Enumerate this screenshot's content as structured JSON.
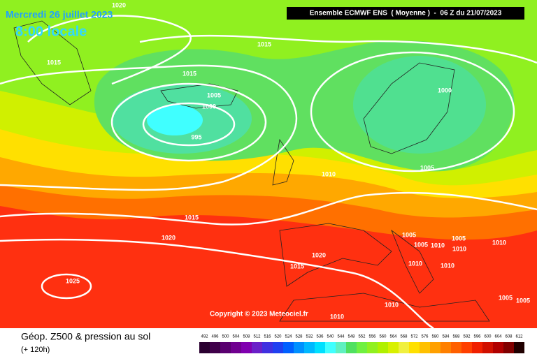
{
  "title": {
    "date": "Mercredi 26 juillet 2023",
    "time": "8:00 locale"
  },
  "header": "Ensemble ECMWF ENS  ( Moyenne )  -  06 Z du 21/07/2023",
  "isobars": [
    1020,
    1015,
    1015,
    1015,
    1005,
    1000,
    995,
    1000,
    1005,
    1010,
    1015,
    1020,
    1005,
    1005,
    1010,
    1005,
    1010,
    1010,
    1020,
    1015,
    1010,
    1010,
    1025,
    1010,
    1010,
    1005,
    1005
  ],
  "copyright": "Copyright © 2023 Meteociel.fr",
  "footer": {
    "title": "Géop. Z500 & pression au sol",
    "lead": "(+ 120h)"
  },
  "scale": {
    "values": [
      492,
      496,
      500,
      504,
      508,
      512,
      516,
      520,
      524,
      528,
      532,
      536,
      540,
      544,
      548,
      552,
      556,
      560,
      564,
      568,
      572,
      576,
      580,
      584,
      588,
      592,
      596,
      600,
      604,
      608,
      612
    ],
    "colors": [
      "#2a0030",
      "#40004a",
      "#5a0070",
      "#700090",
      "#8000b0",
      "#6a20c8",
      "#4030e0",
      "#2040f0",
      "#0060ff",
      "#0090ff",
      "#00b8ff",
      "#00e0ff",
      "#40ffff",
      "#60f0c0",
      "#50e060",
      "#70f040",
      "#90f020",
      "#b0f000",
      "#d8f000",
      "#f0f040",
      "#ffe000",
      "#ffc000",
      "#ffa000",
      "#ff8000",
      "#ff6000",
      "#ff4000",
      "#f02000",
      "#d01000",
      "#b00000",
      "#800000",
      "#200000"
    ]
  }
}
